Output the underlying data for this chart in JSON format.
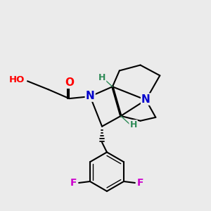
{
  "background_color": "#ebebeb",
  "atom_colors": {
    "O": "#ff0000",
    "N": "#0000cc",
    "F": "#cc00cc",
    "H": "#2e8b57",
    "C": "#000000"
  },
  "bond_color": "#000000",
  "bond_width": 1.5
}
